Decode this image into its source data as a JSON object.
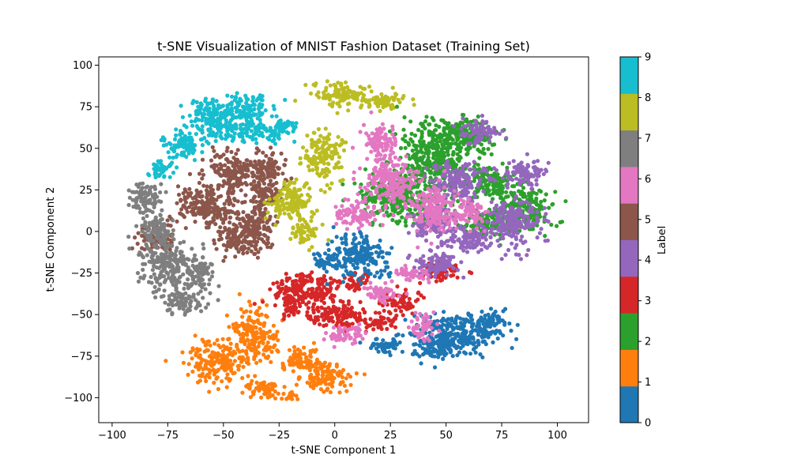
{
  "chart_data": {
    "type": "scatter",
    "title": "t-SNE Visualization of MNIST Fashion Dataset (Training Set)",
    "xlabel": "t-SNE Component 1",
    "ylabel": "t-SNE Component 2",
    "xlim": [
      -106,
      114
    ],
    "ylim": [
      -115,
      105
    ],
    "xticks": [
      -100,
      -75,
      -50,
      -25,
      0,
      25,
      50,
      75,
      100
    ],
    "yticks": [
      -100,
      -75,
      -50,
      -25,
      0,
      25,
      50,
      75,
      100
    ],
    "grid": false,
    "colorbar": {
      "label": "Label",
      "ticks": [
        0,
        1,
        2,
        3,
        4,
        5,
        6,
        7,
        8,
        9
      ],
      "range": [
        0,
        9
      ],
      "colors": [
        "#1f77b4",
        "#ff7f0e",
        "#2ca02c",
        "#d62728",
        "#9467bd",
        "#8c564b",
        "#e377c2",
        "#7f7f7f",
        "#bcbd22",
        "#17becf"
      ]
    },
    "clusters": [
      {
        "label": 9,
        "regions": [
          [
            -56,
            72,
            10,
            8
          ],
          [
            -40,
            74,
            12,
            8
          ],
          [
            -50,
            62,
            14,
            8
          ],
          [
            -68,
            52,
            10,
            9
          ],
          [
            -30,
            60,
            10,
            6
          ],
          [
            -78,
            38,
            6,
            6
          ],
          [
            -22,
            64,
            5,
            4
          ]
        ]
      },
      {
        "label": 5,
        "regions": [
          [
            -45,
            35,
            14,
            12
          ],
          [
            -58,
            15,
            14,
            14
          ],
          [
            -42,
            -5,
            12,
            10
          ],
          [
            -35,
            5,
            8,
            12
          ],
          [
            -30,
            38,
            8,
            10
          ],
          [
            -80,
            -5,
            8,
            8
          ],
          [
            -30,
            22,
            8,
            8
          ]
        ]
      },
      {
        "label": 7,
        "regions": [
          [
            -75,
            -20,
            13,
            15
          ],
          [
            -85,
            20,
            8,
            10
          ],
          [
            -68,
            -42,
            10,
            8
          ],
          [
            -80,
            0,
            7,
            10
          ],
          [
            -60,
            -25,
            6,
            10
          ]
        ]
      },
      {
        "label": 8,
        "regions": [
          [
            3,
            82,
            12,
            7
          ],
          [
            22,
            78,
            12,
            5
          ],
          [
            -5,
            45,
            9,
            14
          ],
          [
            -20,
            18,
            10,
            12
          ],
          [
            -13,
            0,
            6,
            8
          ]
        ]
      },
      {
        "label": 1,
        "regions": [
          [
            -52,
            -78,
            14,
            12
          ],
          [
            -35,
            -62,
            10,
            15
          ],
          [
            -33,
            -95,
            10,
            5
          ],
          [
            -5,
            -88,
            13,
            8
          ],
          [
            -15,
            -77,
            8,
            8
          ],
          [
            -20,
            -100,
            4,
            3
          ]
        ]
      },
      {
        "label": 3,
        "regions": [
          [
            -12,
            -35,
            16,
            10
          ],
          [
            0,
            -50,
            14,
            8
          ],
          [
            20,
            -55,
            10,
            5
          ],
          [
            30,
            -42,
            10,
            7
          ],
          [
            48,
            -23,
            10,
            6
          ],
          [
            -20,
            -45,
            5,
            8
          ],
          [
            10,
            -30,
            6,
            6
          ]
        ]
      },
      {
        "label": 0,
        "regions": [
          [
            10,
            -15,
            14,
            12
          ],
          [
            55,
            -62,
            18,
            12
          ],
          [
            45,
            -70,
            10,
            8
          ],
          [
            70,
            -55,
            8,
            8
          ],
          [
            22,
            -68,
            8,
            5
          ],
          [
            -3,
            -18,
            6,
            5
          ]
        ]
      },
      {
        "label": 2,
        "regions": [
          [
            45,
            45,
            15,
            22
          ],
          [
            85,
            15,
            12,
            15
          ],
          [
            68,
            5,
            12,
            8
          ],
          [
            30,
            20,
            18,
            15
          ],
          [
            60,
            58,
            12,
            10
          ],
          [
            70,
            30,
            10,
            10
          ]
        ]
      },
      {
        "label": 4,
        "regions": [
          [
            55,
            30,
            12,
            12
          ],
          [
            80,
            5,
            12,
            15
          ],
          [
            45,
            5,
            10,
            10
          ],
          [
            60,
            -5,
            10,
            8
          ],
          [
            65,
            60,
            8,
            8
          ],
          [
            85,
            35,
            10,
            8
          ],
          [
            45,
            -20,
            10,
            8
          ]
        ]
      },
      {
        "label": 6,
        "regions": [
          [
            25,
            30,
            12,
            15
          ],
          [
            45,
            15,
            10,
            15
          ],
          [
            20,
            55,
            8,
            10
          ],
          [
            10,
            10,
            10,
            8
          ],
          [
            20,
            -38,
            8,
            6
          ],
          [
            5,
            -62,
            8,
            6
          ],
          [
            40,
            -58,
            6,
            8
          ],
          [
            60,
            10,
            8,
            8
          ],
          [
            35,
            -25,
            8,
            5
          ]
        ]
      }
    ]
  }
}
